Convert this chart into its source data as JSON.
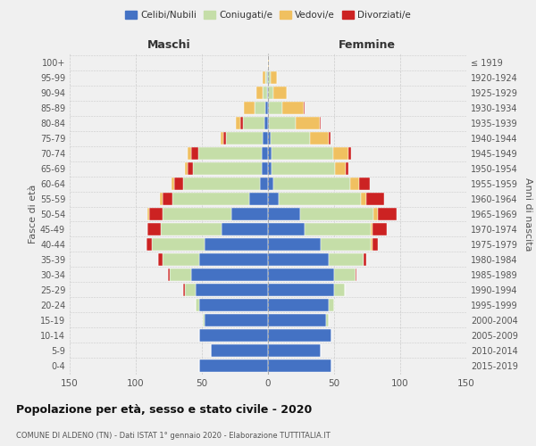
{
  "age_groups_bottom_to_top": [
    "0-4",
    "5-9",
    "10-14",
    "15-19",
    "20-24",
    "25-29",
    "30-34",
    "35-39",
    "40-44",
    "45-49",
    "50-54",
    "55-59",
    "60-64",
    "65-69",
    "70-74",
    "75-79",
    "80-84",
    "85-89",
    "90-94",
    "95-99",
    "100+"
  ],
  "birth_years_bottom_to_top": [
    "2015-2019",
    "2010-2014",
    "2005-2009",
    "2000-2004",
    "1995-1999",
    "1990-1994",
    "1985-1989",
    "1980-1984",
    "1975-1979",
    "1970-1974",
    "1965-1969",
    "1960-1964",
    "1955-1959",
    "1950-1954",
    "1945-1949",
    "1940-1944",
    "1935-1939",
    "1930-1934",
    "1925-1929",
    "1920-1924",
    "≤ 1919"
  ],
  "male_celibe": [
    52,
    43,
    52,
    48,
    52,
    55,
    58,
    52,
    48,
    35,
    28,
    14,
    6,
    5,
    5,
    4,
    3,
    2,
    1,
    1,
    0
  ],
  "male_coniugato": [
    0,
    0,
    0,
    1,
    3,
    8,
    16,
    28,
    40,
    46,
    52,
    58,
    58,
    52,
    48,
    28,
    16,
    8,
    3,
    1,
    0
  ],
  "male_vedovo": [
    0,
    0,
    0,
    0,
    0,
    0,
    0,
    0,
    0,
    0,
    1,
    2,
    2,
    2,
    3,
    2,
    3,
    8,
    5,
    2,
    0
  ],
  "male_divorziato": [
    0,
    0,
    0,
    0,
    0,
    1,
    2,
    3,
    4,
    10,
    10,
    8,
    7,
    4,
    5,
    2,
    2,
    0,
    0,
    0,
    0
  ],
  "female_celibe": [
    48,
    40,
    48,
    44,
    46,
    50,
    50,
    46,
    40,
    28,
    24,
    8,
    4,
    3,
    3,
    2,
    1,
    1,
    0,
    0,
    0
  ],
  "female_coniugato": [
    0,
    0,
    0,
    2,
    4,
    8,
    16,
    26,
    38,
    50,
    56,
    62,
    58,
    48,
    46,
    30,
    20,
    10,
    4,
    2,
    0
  ],
  "female_vedovo": [
    0,
    0,
    0,
    0,
    0,
    0,
    0,
    0,
    1,
    1,
    3,
    4,
    7,
    8,
    12,
    14,
    18,
    16,
    10,
    5,
    1
  ],
  "female_divorziato": [
    0,
    0,
    0,
    0,
    0,
    0,
    1,
    2,
    4,
    11,
    14,
    14,
    8,
    2,
    2,
    1,
    1,
    1,
    0,
    0,
    0
  ],
  "color_celibe": "#4472c4",
  "color_coniugato": "#c5dea8",
  "color_vedovo": "#f0c060",
  "color_divorziato": "#cc2222",
  "title": "Popolazione per età, sesso e stato civile - 2020",
  "subtitle": "COMUNE DI ALDENO (TN) - Dati ISTAT 1° gennaio 2020 - Elaborazione TUTTITALIA.IT",
  "xlabel_left": "Maschi",
  "xlabel_right": "Femmine",
  "ylabel_left": "Fasce di età",
  "ylabel_right": "Anni di nascita",
  "xlim": 150,
  "legend_labels": [
    "Celibi/Nubili",
    "Coniugati/e",
    "Vedovi/e",
    "Divorziati/e"
  ],
  "bg_color": "#f0f0f0"
}
